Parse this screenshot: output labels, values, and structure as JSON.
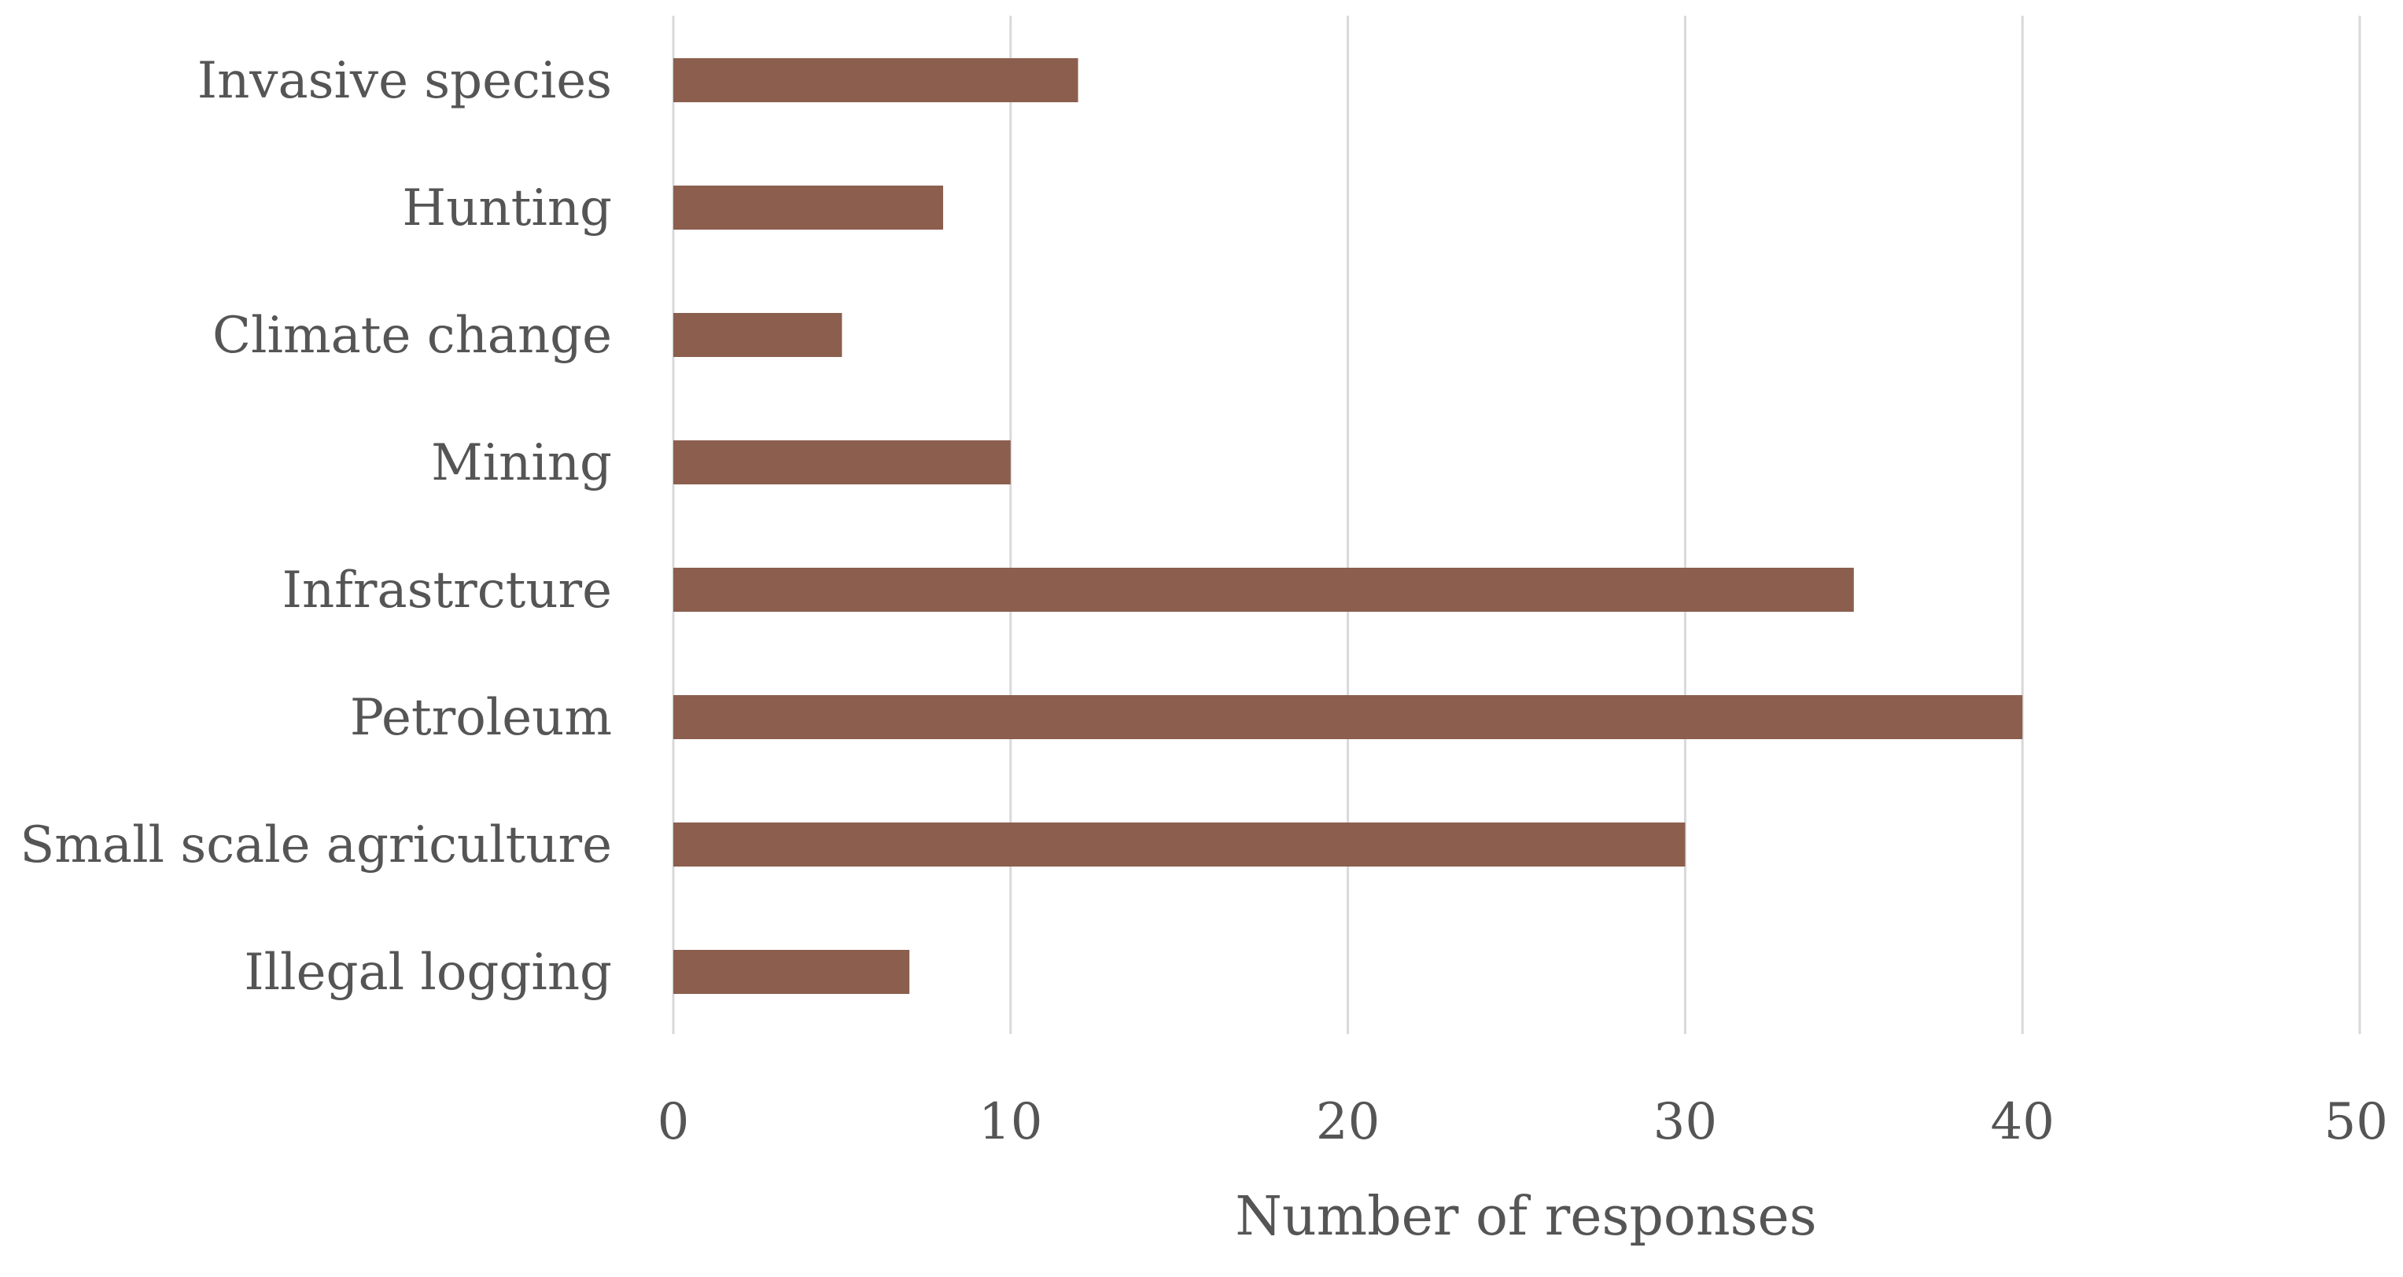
{
  "chart_data": {
    "type": "bar",
    "orientation": "horizontal",
    "categories": [
      "Invasive species",
      "Hunting",
      "Climate change",
      "Mining",
      "Infrastrcture",
      "Petroleum",
      "Small scale agriculture",
      "Illegal logging"
    ],
    "values": [
      12,
      8,
      5,
      10,
      35,
      40,
      30,
      7
    ],
    "xlabel": "Number of responses",
    "ylabel": "",
    "xlim": [
      0,
      50
    ],
    "ticks": [
      "0",
      "10",
      "20",
      "30",
      "40",
      "50"
    ],
    "grid": "vertical",
    "legend": "none",
    "colors": {
      "bar": "#8B5E4E",
      "grid": "#d9d9d9",
      "text": "#555555"
    }
  }
}
